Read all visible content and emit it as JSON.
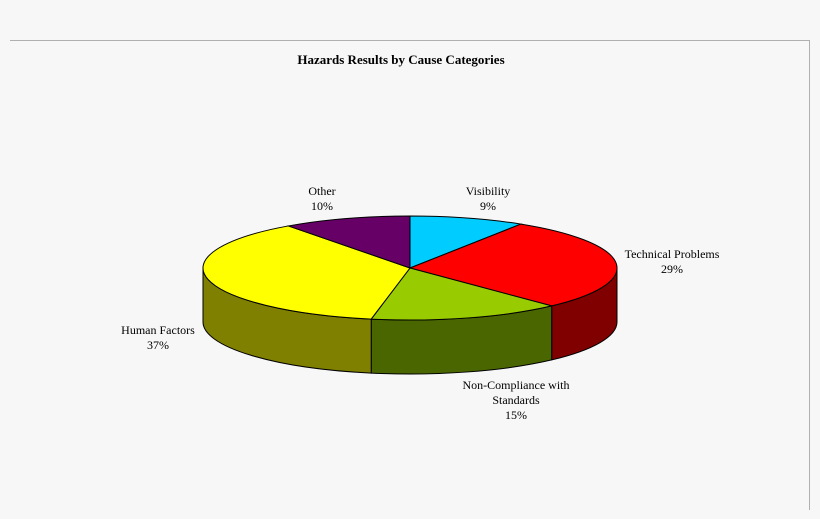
{
  "chart_data": {
    "type": "pie",
    "title": "Hazards Results by Cause Categories",
    "three_d": true,
    "slices": [
      {
        "label_lines": [
          "Visibility"
        ],
        "pct_label": "9%",
        "value": 9,
        "color": "#00ccff",
        "side_color": "#0099cc"
      },
      {
        "label_lines": [
          "Technical Problems"
        ],
        "pct_label": "29%",
        "value": 29,
        "color": "#ff0000",
        "side_color": "#800000"
      },
      {
        "label_lines": [
          "Non-Compliance with",
          "Standards"
        ],
        "pct_label": "15%",
        "value": 15,
        "color": "#99cc00",
        "side_color": "#4a6600"
      },
      {
        "label_lines": [
          "Human Factors"
        ],
        "pct_label": "37%",
        "value": 37,
        "color": "#ffff00",
        "side_color": "#808000"
      },
      {
        "label_lines": [
          "Other"
        ],
        "pct_label": "10%",
        "value": 10,
        "color": "#660066",
        "side_color": "#330033"
      }
    ]
  }
}
